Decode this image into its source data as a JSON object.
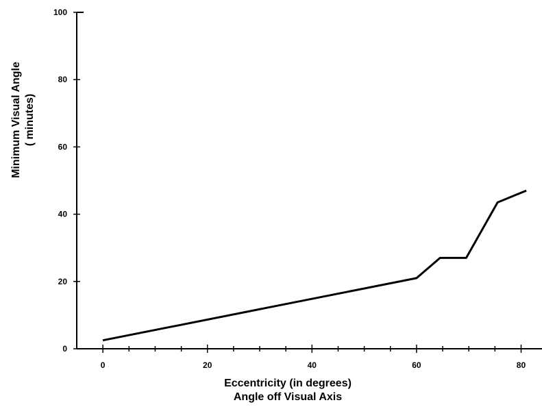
{
  "chart_data": {
    "type": "line",
    "title": "",
    "xlabel": "Eccentricity  (in degrees)",
    "xlabel2": "Angle off Visual Axis",
    "ylabel": "Minimum  Visual  Angle",
    "ylabel2": "( minutes)",
    "xlim": [
      -5,
      84
    ],
    "ylim": [
      0,
      100
    ],
    "x_ticks": [
      0,
      20,
      40,
      60,
      80
    ],
    "y_ticks": [
      0,
      20,
      40,
      60,
      80,
      100
    ],
    "x_tick_labels": [
      "0",
      "20",
      "40",
      "60",
      "80"
    ],
    "y_tick_labels": [
      "0",
      "20",
      "40",
      "60",
      "80",
      "100"
    ],
    "grid": false,
    "series": [
      {
        "x": [
          0,
          60,
          64.5,
          69.5,
          75.5,
          81
        ],
        "y": [
          2.5,
          21,
          27,
          27,
          43.5,
          47
        ]
      }
    ]
  },
  "colors": {
    "line": "#000000",
    "axis": "#000000",
    "background": "#ffffff"
  }
}
